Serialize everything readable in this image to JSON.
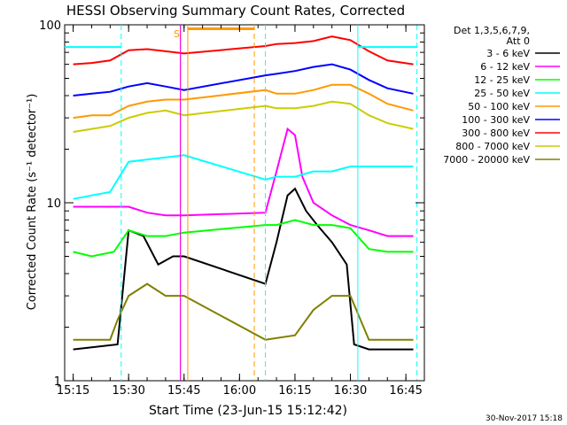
{
  "chart_data": {
    "type": "line",
    "title": "HESSI Observing Summary Count Rates, Corrected",
    "xlabel": "Start Time (23-Jun-15 15:12:42)",
    "ylabel": "Corrected Count Rate (s⁻¹ detector⁻¹)",
    "yscale": "log",
    "xlim": [
      "15:12:42",
      "16:50:00"
    ],
    "ylim": [
      1,
      100
    ],
    "x_ticks": [
      "15:15",
      "15:30",
      "15:45",
      "16:00",
      "16:15",
      "16:30",
      "16:45"
    ],
    "y_ticks": [
      "1",
      "10",
      "100"
    ],
    "grid": false,
    "legend_position": "right",
    "legend_header": [
      "Det 1,3,5,6,7,9,",
      "Att 0"
    ],
    "series": [
      {
        "name": "3 - 6 keV",
        "color": "#000000",
        "points": [
          [
            "15:15",
            1.5
          ],
          [
            "15:27",
            1.6
          ],
          [
            "15:30",
            7.0
          ],
          [
            "15:34",
            6.5
          ],
          [
            "15:38",
            4.5
          ],
          [
            "15:42",
            5.0
          ],
          [
            "15:45",
            5.0
          ],
          [
            "16:07",
            3.5
          ],
          [
            "16:10",
            6.0
          ],
          [
            "16:13",
            11.0
          ],
          [
            "16:15",
            12.0
          ],
          [
            "16:18",
            9.0
          ],
          [
            "16:21",
            7.5
          ],
          [
            "16:25",
            6.0
          ],
          [
            "16:29",
            4.5
          ],
          [
            "16:31",
            1.6
          ],
          [
            "16:35",
            1.5
          ],
          [
            "16:47",
            1.5
          ]
        ]
      },
      {
        "name": "6 - 12 keV",
        "color": "#ff00ff",
        "points": [
          [
            "15:15",
            9.5
          ],
          [
            "15:30",
            9.5
          ],
          [
            "15:35",
            8.8
          ],
          [
            "15:40",
            8.5
          ],
          [
            "15:45",
            8.5
          ],
          [
            "16:07",
            8.8
          ],
          [
            "16:10",
            15.0
          ],
          [
            "16:13",
            26.0
          ],
          [
            "16:15",
            24.0
          ],
          [
            "16:17",
            14.0
          ],
          [
            "16:20",
            10.0
          ],
          [
            "16:25",
            8.5
          ],
          [
            "16:30",
            7.5
          ],
          [
            "16:35",
            7.0
          ],
          [
            "16:40",
            6.5
          ],
          [
            "16:47",
            6.5
          ]
        ]
      },
      {
        "name": "12 - 25 keV",
        "color": "#00ff00",
        "points": [
          [
            "15:15",
            5.3
          ],
          [
            "15:20",
            5.0
          ],
          [
            "15:26",
            5.3
          ],
          [
            "15:30",
            7.0
          ],
          [
            "15:35",
            6.5
          ],
          [
            "15:40",
            6.5
          ],
          [
            "15:45",
            6.8
          ],
          [
            "16:07",
            7.5
          ],
          [
            "16:10",
            7.5
          ],
          [
            "16:15",
            8.0
          ],
          [
            "16:20",
            7.5
          ],
          [
            "16:25",
            7.5
          ],
          [
            "16:30",
            7.2
          ],
          [
            "16:35",
            5.5
          ],
          [
            "16:40",
            5.3
          ],
          [
            "16:47",
            5.3
          ]
        ]
      },
      {
        "name": "25 - 50 keV",
        "color": "#00ffff",
        "points": [
          [
            "15:15",
            10.5
          ],
          [
            "15:20",
            11.0
          ],
          [
            "15:25",
            11.5
          ],
          [
            "15:30",
            17.0
          ],
          [
            "15:35",
            17.5
          ],
          [
            "15:40",
            18.0
          ],
          [
            "15:45",
            18.5
          ],
          [
            "16:07",
            13.5
          ],
          [
            "16:10",
            14.0
          ],
          [
            "16:15",
            14.0
          ],
          [
            "16:20",
            15.0
          ],
          [
            "16:25",
            15.0
          ],
          [
            "16:30",
            16.0
          ],
          [
            "16:35",
            16.0
          ],
          [
            "16:40",
            16.0
          ],
          [
            "16:47",
            16.0
          ]
        ]
      },
      {
        "name": "50 - 100 keV",
        "color": "#ff9900",
        "points": [
          [
            "15:15",
            30.0
          ],
          [
            "15:20",
            31.0
          ],
          [
            "15:25",
            31.0
          ],
          [
            "15:30",
            35.0
          ],
          [
            "15:35",
            37.0
          ],
          [
            "15:40",
            38.0
          ],
          [
            "15:45",
            38.0
          ],
          [
            "16:07",
            43.0
          ],
          [
            "16:10",
            41.0
          ],
          [
            "16:15",
            41.0
          ],
          [
            "16:20",
            43.0
          ],
          [
            "16:25",
            46.0
          ],
          [
            "16:30",
            46.0
          ],
          [
            "16:35",
            41.0
          ],
          [
            "16:40",
            36.0
          ],
          [
            "16:47",
            33.0
          ]
        ]
      },
      {
        "name": "100 - 300 keV",
        "color": "#0000ff",
        "points": [
          [
            "15:15",
            40.0
          ],
          [
            "15:20",
            41.0
          ],
          [
            "15:25",
            42.0
          ],
          [
            "15:30",
            45.0
          ],
          [
            "15:35",
            47.0
          ],
          [
            "15:40",
            45.0
          ],
          [
            "15:45",
            43.0
          ],
          [
            "16:07",
            52.0
          ],
          [
            "16:10",
            53.0
          ],
          [
            "16:15",
            55.0
          ],
          [
            "16:20",
            58.0
          ],
          [
            "16:25",
            60.0
          ],
          [
            "16:30",
            56.0
          ],
          [
            "16:35",
            49.0
          ],
          [
            "16:40",
            44.0
          ],
          [
            "16:47",
            41.0
          ]
        ]
      },
      {
        "name": "300 - 800 keV",
        "color": "#ff0000",
        "points": [
          [
            "15:15",
            60.0
          ],
          [
            "15:20",
            61.0
          ],
          [
            "15:25",
            63.0
          ],
          [
            "15:30",
            72.0
          ],
          [
            "15:35",
            73.0
          ],
          [
            "15:40",
            71.0
          ],
          [
            "15:45",
            69.0
          ],
          [
            "16:07",
            76.0
          ],
          [
            "16:10",
            78.0
          ],
          [
            "16:15",
            79.0
          ],
          [
            "16:20",
            81.0
          ],
          [
            "16:25",
            86.0
          ],
          [
            "16:30",
            82.0
          ],
          [
            "16:35",
            71.0
          ],
          [
            "16:40",
            63.0
          ],
          [
            "16:47",
            60.0
          ]
        ]
      },
      {
        "name": "800 - 7000 keV",
        "color": "#cccc00",
        "points": [
          [
            "15:15",
            25.0
          ],
          [
            "15:20",
            26.0
          ],
          [
            "15:25",
            27.0
          ],
          [
            "15:30",
            30.0
          ],
          [
            "15:35",
            32.0
          ],
          [
            "15:40",
            33.0
          ],
          [
            "15:45",
            31.0
          ],
          [
            "16:07",
            35.0
          ],
          [
            "16:10",
            34.0
          ],
          [
            "16:15",
            34.0
          ],
          [
            "16:20",
            35.0
          ],
          [
            "16:25",
            37.0
          ],
          [
            "16:30",
            36.0
          ],
          [
            "16:35",
            31.0
          ],
          [
            "16:40",
            28.0
          ],
          [
            "16:47",
            26.0
          ]
        ]
      },
      {
        "name": "7000 - 20000 keV",
        "color": "#808000",
        "points": [
          [
            "15:15",
            1.7
          ],
          [
            "15:25",
            1.7
          ],
          [
            "15:27",
            2.2
          ],
          [
            "15:30",
            3.0
          ],
          [
            "15:35",
            3.5
          ],
          [
            "15:40",
            3.0
          ],
          [
            "15:45",
            3.0
          ],
          [
            "16:07",
            1.7
          ],
          [
            "16:15",
            1.8
          ],
          [
            "16:20",
            2.5
          ],
          [
            "16:25",
            3.0
          ],
          [
            "16:30",
            3.0
          ],
          [
            "16:35",
            1.7
          ],
          [
            "16:47",
            1.7
          ]
        ]
      }
    ],
    "markers": {
      "attenuator_line": {
        "value": 75,
        "color": "#00ffff",
        "segments": [
          [
            "15:12:42",
            "15:28"
          ],
          [
            "16:32",
            "16:48"
          ]
        ]
      },
      "solid_bar": {
        "value": 95,
        "color": "#ff9900",
        "segments": [
          [
            "15:46",
            "16:04"
          ]
        ]
      },
      "saa_label": {
        "text": "S",
        "x": "15:43",
        "color": "#ff9900"
      },
      "vertical_lines": [
        {
          "x": "15:28",
          "color": "#00ffff",
          "style": "dashed"
        },
        {
          "x": "15:44",
          "color": "#00ffff",
          "style": "solid"
        },
        {
          "x": "15:44",
          "color": "#ff0000",
          "style": "solid"
        },
        {
          "x": "15:44",
          "color": "#ff00ff",
          "style": "solid"
        },
        {
          "x": "15:46",
          "color": "#ff9900",
          "style": "solid"
        },
        {
          "x": "16:04",
          "color": "#ff9900",
          "style": "dashed"
        },
        {
          "x": "16:07",
          "color": "#00ffff",
          "style": "dashed"
        },
        {
          "x": "16:32",
          "color": "#00ffff",
          "style": "solid"
        },
        {
          "x": "16:48",
          "color": "#00ffff",
          "style": "dashed"
        }
      ]
    }
  },
  "footer": {
    "date_stamp": "30-Nov-2017 15:18"
  }
}
